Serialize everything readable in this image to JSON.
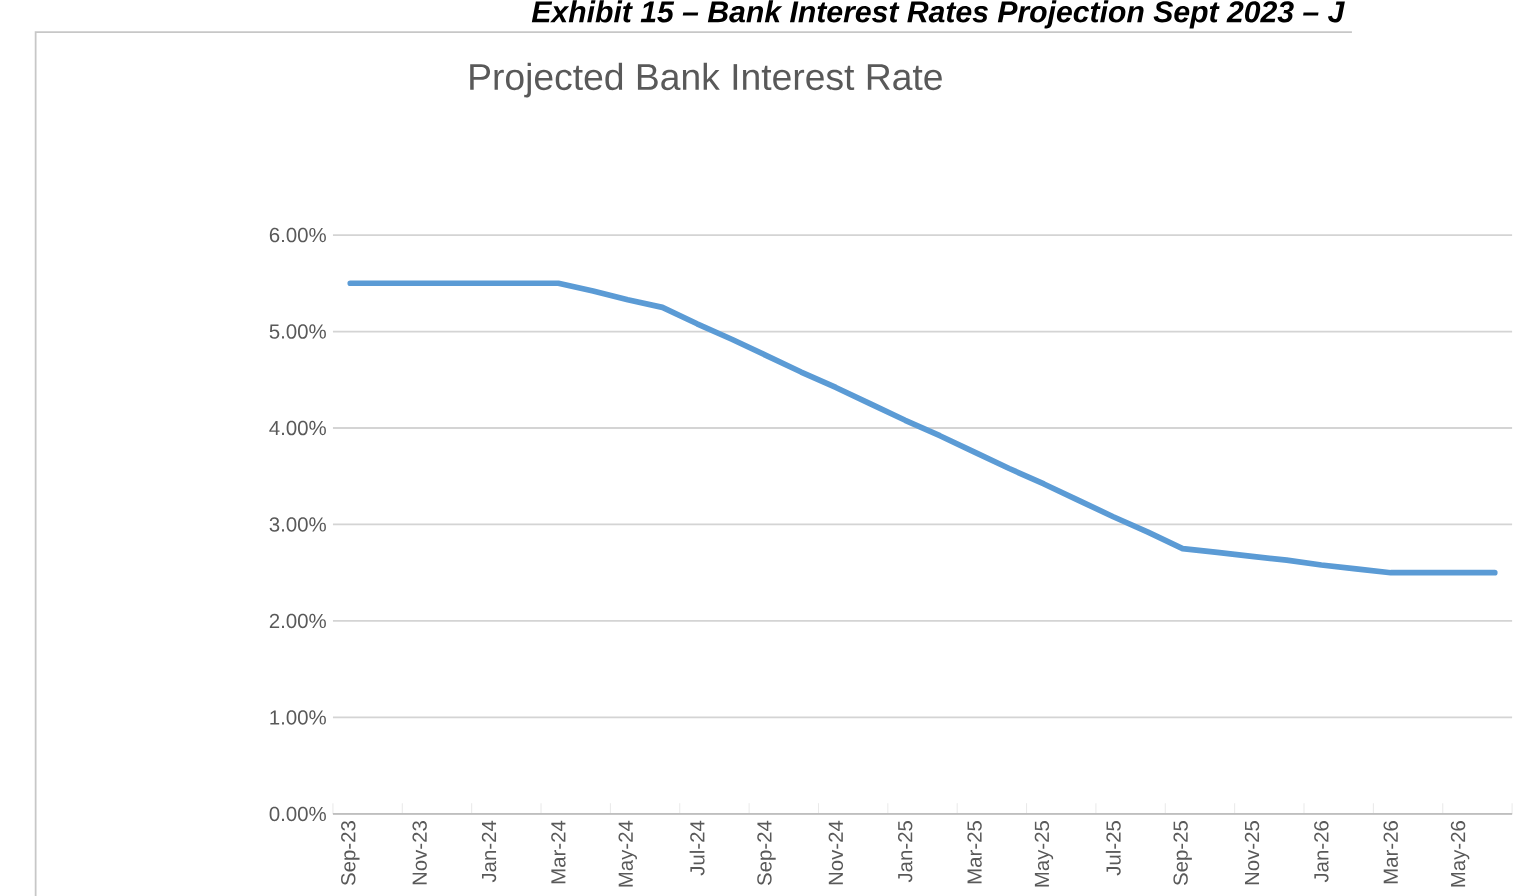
{
  "chart_data": {
    "type": "line",
    "title": "Projected Bank Interest Rate",
    "annotations": [
      "Exhibit 15 – Bank Interest Rates Projection Sept 2023 – J"
    ],
    "categories": [
      "Sep-23",
      null,
      "Nov-23",
      null,
      "Jan-24",
      null,
      "Mar-24",
      null,
      "May-24",
      null,
      "Jul-24",
      null,
      "Sep-24",
      null,
      "Nov-24",
      null,
      "Jan-25",
      null,
      "Mar-25",
      null,
      "May-25",
      null,
      "Jul-25",
      null,
      "Sep-25",
      null,
      "Nov-25",
      null,
      "Jan-26",
      null,
      "Mar-26",
      null,
      "May-26",
      null
    ],
    "values": [
      5.5,
      5.5,
      5.5,
      5.5,
      5.5,
      5.5,
      5.5,
      5.42,
      5.33,
      5.25,
      5.08,
      4.92,
      4.75,
      4.58,
      4.42,
      4.25,
      4.08,
      3.92,
      3.75,
      3.58,
      3.42,
      3.25,
      3.08,
      2.92,
      2.75,
      2.71,
      2.67,
      2.63,
      2.58,
      2.54,
      2.5,
      2.5,
      2.5,
      2.5
    ],
    "color": "#5b9bd5",
    "ylim": [
      0,
      6
    ],
    "yticks": [
      {
        "value": 0,
        "label": "0.00%"
      },
      {
        "value": 1,
        "label": "1.00%"
      },
      {
        "value": 2,
        "label": "2.00%"
      },
      {
        "value": 3,
        "label": "3.00%"
      },
      {
        "value": 4,
        "label": "4.00%"
      },
      {
        "value": 5,
        "label": "5.00%"
      },
      {
        "value": 6,
        "label": "6.00%"
      }
    ],
    "grid": "y"
  }
}
